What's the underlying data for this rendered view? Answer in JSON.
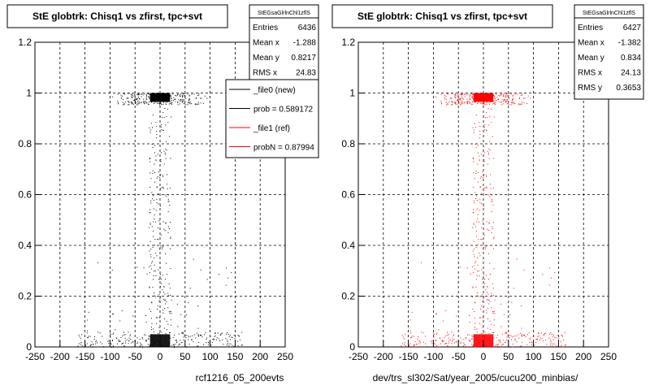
{
  "footer": "",
  "chart_data": [
    {
      "type": "scatter",
      "title": "StE globtrk: Chisq1 vs zfirst, tpc+svt",
      "stats_title": "StEGsaGlrlnChl1zflS",
      "stats": [
        {
          "label": "Entries",
          "value": "6436"
        },
        {
          "label": "Mean x",
          "value": "-1.288"
        },
        {
          "label": "Mean y",
          "value": "0.8217"
        },
        {
          "label": "RMS x",
          "value": "24.83"
        }
      ],
      "legend": [
        {
          "label": "_file0 (new)",
          "color": "#000000"
        },
        {
          "label": "prob = 0.589172",
          "color": "#000000"
        },
        {
          "label": "_file1 (ref)",
          "color": "#ff0000"
        },
        {
          "label": "probN = 0.87994",
          "color": "#ff0000"
        }
      ],
      "xlabel": "rcf1216_05_200evts",
      "ylabel": "",
      "xlim": [
        -250,
        250
      ],
      "ylim": [
        0,
        1.2
      ],
      "xticks": [
        -250,
        -200,
        -150,
        -100,
        -50,
        0,
        50,
        100,
        150,
        200,
        250
      ],
      "yticks": [
        0,
        0.2,
        0.4,
        0.6,
        0.8,
        1,
        1.2
      ],
      "grid": true,
      "color": "#000000",
      "clusters": [
        {
          "x": [
            -20,
            20
          ],
          "y": [
            0.965,
            1.0
          ],
          "description": "dense block"
        },
        {
          "x": [
            -20,
            20
          ],
          "y": [
            0.0,
            0.05
          ],
          "description": "dense block"
        }
      ]
    },
    {
      "type": "scatter",
      "title": "StE globtrk: Chisq1 vs zfirst, tpc+svt",
      "stats_title": "StEGsaGlrlnChl1zflS",
      "stats": [
        {
          "label": "Entries",
          "value": "6427"
        },
        {
          "label": "Mean x",
          "value": "-1.382"
        },
        {
          "label": "Mean y",
          "value": "0.834"
        },
        {
          "label": "RMS x",
          "value": "24.13"
        },
        {
          "label": "RMS y",
          "value": "0.3653"
        }
      ],
      "xlabel": "dev/trs_sl302/Sat/year_2005/cucu200_minbias/",
      "ylabel": "",
      "xlim": [
        -250,
        250
      ],
      "ylim": [
        0,
        1.2
      ],
      "xticks": [
        -250,
        -200,
        -150,
        -100,
        -50,
        0,
        50,
        100,
        150,
        200,
        250
      ],
      "yticks": [
        0,
        0.2,
        0.4,
        0.6,
        0.8,
        1,
        1.2
      ],
      "grid": true,
      "color": "#ff0000",
      "clusters": [
        {
          "x": [
            -20,
            20
          ],
          "y": [
            0.965,
            1.0
          ],
          "description": "dense block"
        },
        {
          "x": [
            -20,
            20
          ],
          "y": [
            0.0,
            0.05
          ],
          "description": "dense block"
        }
      ]
    }
  ]
}
